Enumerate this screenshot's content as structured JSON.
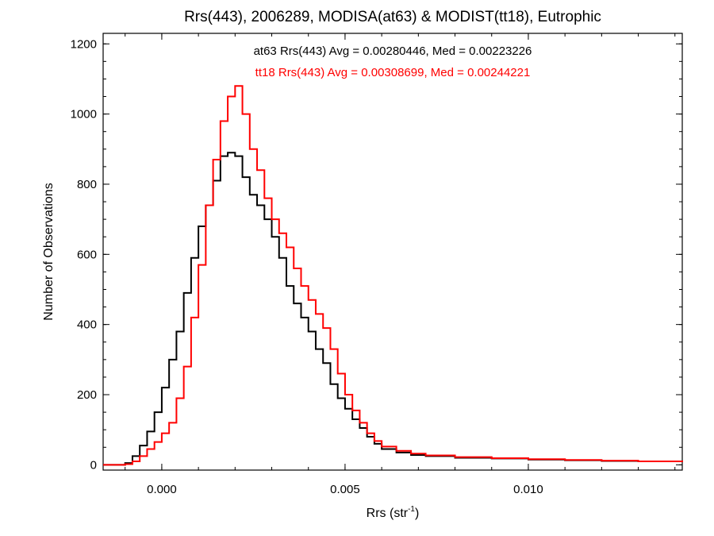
{
  "chart_data": {
    "type": "line",
    "title": "Rrs(443), 2006289, MODISA(at63) & MODIST(tt18), Eutrophic",
    "xlabel": {
      "base": "Rrs (str",
      "superscript": "-1",
      "closing": ")"
    },
    "ylabel": "Number of Observations",
    "xlim": [
      -0.0016,
      0.0142
    ],
    "ylim": [
      -15,
      1230
    ],
    "x_ticks": [
      0.0,
      0.005,
      0.01
    ],
    "x_tick_labels": [
      "0.000",
      "0.005",
      "0.010"
    ],
    "y_ticks": [
      0,
      200,
      400,
      600,
      800,
      1000,
      1200
    ],
    "y_tick_labels": [
      "0",
      "200",
      "400",
      "600",
      "800",
      "1000",
      "1200"
    ],
    "grid": false,
    "line_style": "step",
    "annotations": [
      {
        "text": "at63 Rrs(443) Avg = 0.00280446, Med = 0.00223226",
        "color": "#000000"
      },
      {
        "text": "tt18 Rrs(443) Avg = 0.00308699, Med = 0.00244221",
        "color": "#ff0000"
      }
    ],
    "series": [
      {
        "name": "at63",
        "color": "#000000",
        "x": [
          -0.0016,
          -0.0012,
          -0.001,
          -0.0008,
          -0.0006,
          -0.0004,
          -0.0002,
          0.0,
          0.0002,
          0.0004,
          0.0006,
          0.0008,
          0.001,
          0.0012,
          0.0014,
          0.0016,
          0.0018,
          0.002,
          0.0022,
          0.0024,
          0.0026,
          0.0028,
          0.003,
          0.0032,
          0.0034,
          0.0036,
          0.0038,
          0.004,
          0.0042,
          0.0044,
          0.0046,
          0.0048,
          0.005,
          0.0052,
          0.0054,
          0.0056,
          0.0058,
          0.006,
          0.0064,
          0.0068,
          0.0072,
          0.008,
          0.009,
          0.01,
          0.011,
          0.012,
          0.013,
          0.0142
        ],
        "values": [
          0,
          0,
          5,
          25,
          55,
          95,
          150,
          220,
          300,
          380,
          490,
          590,
          680,
          740,
          810,
          880,
          890,
          880,
          820,
          770,
          740,
          700,
          650,
          590,
          510,
          460,
          420,
          380,
          330,
          290,
          230,
          190,
          160,
          130,
          105,
          80,
          60,
          45,
          35,
          28,
          25,
          20,
          18,
          15,
          13,
          11,
          10,
          8
        ]
      },
      {
        "name": "tt18",
        "color": "#ff0000",
        "x": [
          -0.0016,
          -0.0012,
          -0.001,
          -0.0008,
          -0.0006,
          -0.0004,
          -0.0002,
          0.0,
          0.0002,
          0.0004,
          0.0006,
          0.0008,
          0.001,
          0.0012,
          0.0014,
          0.0016,
          0.0018,
          0.002,
          0.0022,
          0.0024,
          0.0026,
          0.0028,
          0.003,
          0.0032,
          0.0034,
          0.0036,
          0.0038,
          0.004,
          0.0042,
          0.0044,
          0.0046,
          0.0048,
          0.005,
          0.0052,
          0.0054,
          0.0056,
          0.0058,
          0.006,
          0.0064,
          0.0068,
          0.0072,
          0.008,
          0.009,
          0.01,
          0.011,
          0.012,
          0.013,
          0.0142
        ],
        "values": [
          0,
          0,
          2,
          10,
          25,
          45,
          65,
          90,
          120,
          190,
          280,
          420,
          570,
          740,
          870,
          980,
          1050,
          1080,
          1000,
          900,
          840,
          760,
          700,
          660,
          620,
          560,
          510,
          470,
          430,
          390,
          330,
          260,
          200,
          155,
          120,
          90,
          68,
          52,
          40,
          32,
          27,
          22,
          19,
          16,
          14,
          12,
          10,
          8
        ]
      }
    ]
  }
}
